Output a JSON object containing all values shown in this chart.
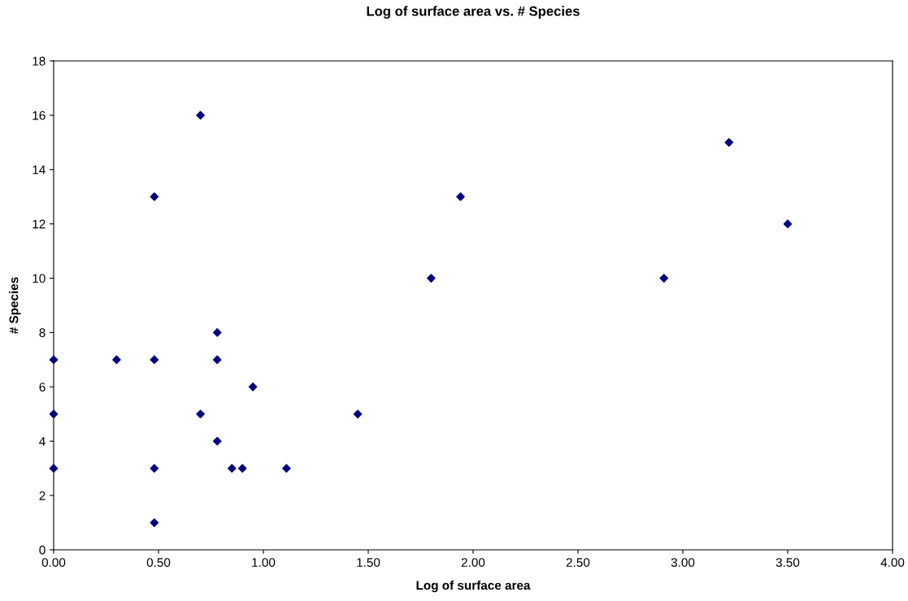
{
  "chart_data": {
    "type": "scatter",
    "title": "Log of surface area vs. # Species",
    "xlabel": "Log of surface area",
    "ylabel": "# Species",
    "x": [
      0,
      0,
      0,
      0.3,
      0.48,
      0.48,
      0.48,
      0.48,
      0.7,
      0.7,
      0.78,
      0.78,
      0.78,
      0.85,
      0.9,
      0.95,
      1.11,
      1.45,
      1.8,
      1.94,
      2.91,
      3.22,
      3.5
    ],
    "series": [
      {
        "color": "#000080",
        "values": [
          7,
          5,
          3,
          7,
          13,
          7,
          3,
          1,
          16,
          5,
          8,
          7,
          4,
          3,
          3,
          6,
          3,
          5,
          10,
          13,
          10,
          15,
          12
        ]
      }
    ],
    "xlim": [
      0,
      4
    ],
    "ylim": [
      0,
      18
    ],
    "xticks": [
      {
        "value": 0,
        "label": "0.00"
      },
      {
        "value": 0.5,
        "label": "0.50"
      },
      {
        "value": 1,
        "label": "1.00"
      },
      {
        "value": 1.5,
        "label": "1.50"
      },
      {
        "value": 2,
        "label": "2.00"
      },
      {
        "value": 2.5,
        "label": "2.50"
      },
      {
        "value": 3,
        "label": "3.00"
      },
      {
        "value": 3.5,
        "label": "3.50"
      },
      {
        "value": 4,
        "label": "4.00"
      }
    ],
    "yticks": [
      0,
      2,
      4,
      6,
      8,
      10,
      12,
      14,
      16,
      18
    ],
    "marker": "diamond",
    "grid": false,
    "legend": false
  }
}
